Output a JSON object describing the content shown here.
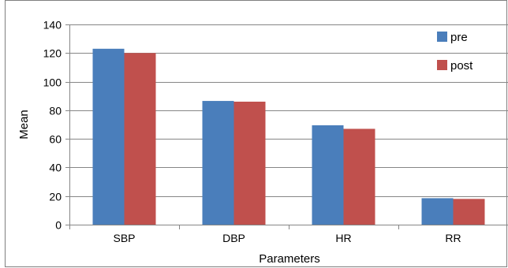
{
  "chart_data": {
    "type": "bar",
    "categories": [
      "SBP",
      "DBP",
      "HR",
      "RR"
    ],
    "series": [
      {
        "name": "pre",
        "color": "#4a7ebb",
        "values": [
          123,
          86.5,
          69.5,
          18.5
        ]
      },
      {
        "name": "post",
        "color": "#c0504d",
        "values": [
          120,
          86,
          67,
          18
        ]
      }
    ],
    "title": "",
    "xlabel": "Parameters",
    "ylabel": "Mean",
    "ylim": [
      0,
      140
    ],
    "yticks": [
      0,
      20,
      40,
      60,
      80,
      100,
      120,
      140
    ],
    "grid": true,
    "legend_position": "top-right"
  }
}
